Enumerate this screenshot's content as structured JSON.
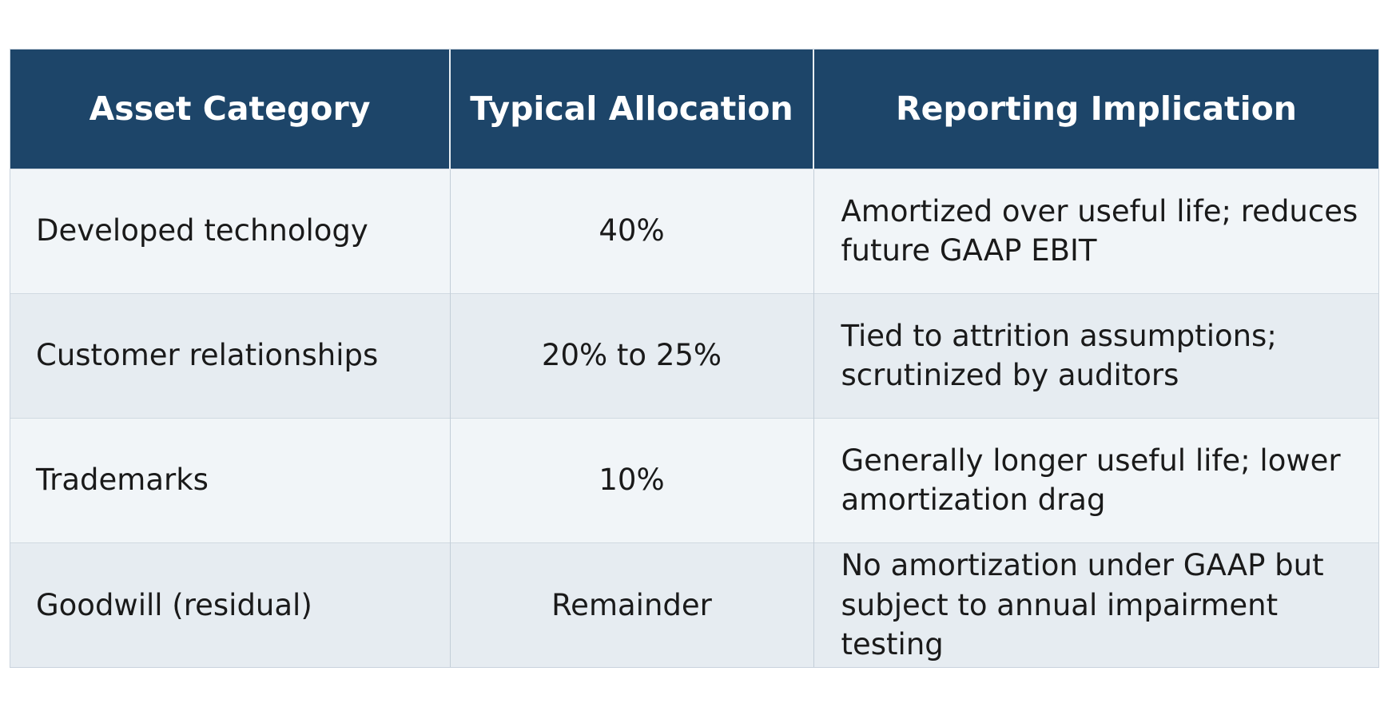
{
  "table": {
    "headers": [
      "Asset Category",
      "Typical Allocation",
      "Reporting Implication"
    ],
    "rows": [
      {
        "category": "Developed technology",
        "allocation": "40%",
        "implication": "Amortized over useful life; reduces future GAAP EBIT"
      },
      {
        "category": "Customer relationships",
        "allocation": "20% to 25%",
        "implication": "Tied to attrition assumptions; scrutinized by auditors"
      },
      {
        "category": "Trademarks",
        "allocation": "10%",
        "implication": "Generally longer useful life; lower amortization drag"
      },
      {
        "category": "Goodwill (residual)",
        "allocation": "Remainder",
        "implication": "No amortization under GAAP but subject to annual impairment testing"
      }
    ]
  },
  "colors": {
    "header_bg": "#1d4569",
    "header_text": "#ffffff",
    "row_odd_bg": "#f1f5f8",
    "row_even_bg": "#e6ecf1",
    "cell_text": "#1a1a1a"
  }
}
